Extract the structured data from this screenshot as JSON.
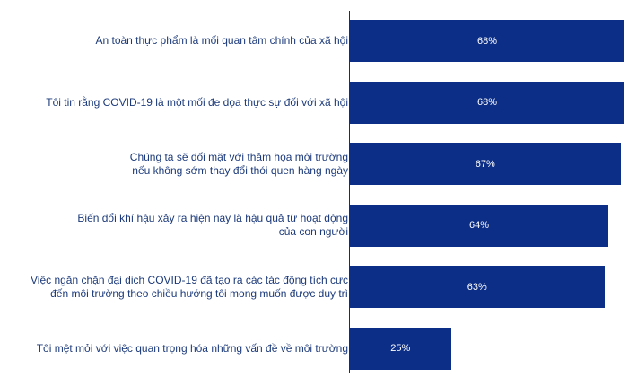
{
  "chart_data": {
    "type": "bar",
    "orientation": "horizontal",
    "title": "",
    "xlabel": "",
    "ylabel": "",
    "categories": [
      "An toàn thực phẩm là mối quan tâm chính của xã hội",
      "Tôi tin rằng COVID-19 là một mối đe dọa thực sự đối với xã hội",
      "Chúng ta sẽ đối mặt với thảm họa môi trường\nnếu không sớm thay đổi thói quen hàng ngày",
      "Biến đổi khí hậu xảy ra hiện nay là hậu quả từ hoạt động\ncủa con người",
      "Việc ngăn chặn đại dịch COVID-19 đã tạo ra các tác động tích cực\nđến môi trường theo chiều hướng tôi mong muốn được duy trì",
      "Tôi mệt mỏi với việc quan trọng hóa những vấn đề về môi trường"
    ],
    "values": [
      68,
      68,
      67,
      64,
      63,
      25
    ],
    "value_labels": [
      "68%",
      "68%",
      "67%",
      "64%",
      "63%",
      "25%"
    ],
    "xlim": [
      0,
      100
    ],
    "grid": false,
    "bar_color": "#0c2e86",
    "label_color": "#1c3a7a",
    "value_label_color": "#ffffff"
  }
}
